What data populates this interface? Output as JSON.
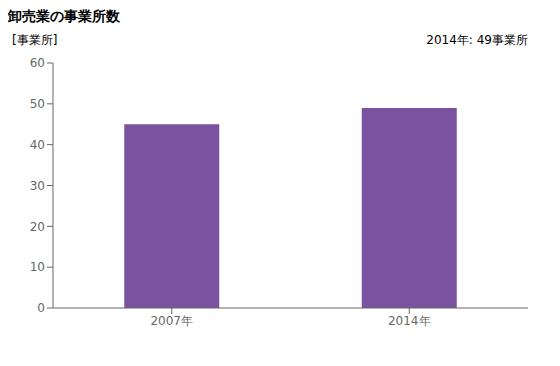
{
  "chart_data": {
    "type": "bar",
    "title": "卸売業の事業所数",
    "ylabel": "[事業所]",
    "annotation": "2014年: 49事業所",
    "categories": [
      "2007年",
      "2014年"
    ],
    "values": [
      45,
      49
    ],
    "color": "#7B52A0",
    "ylim": [
      0,
      60
    ],
    "yticks": [
      0,
      10,
      20,
      30,
      40,
      50,
      60
    ],
    "grid": false
  }
}
